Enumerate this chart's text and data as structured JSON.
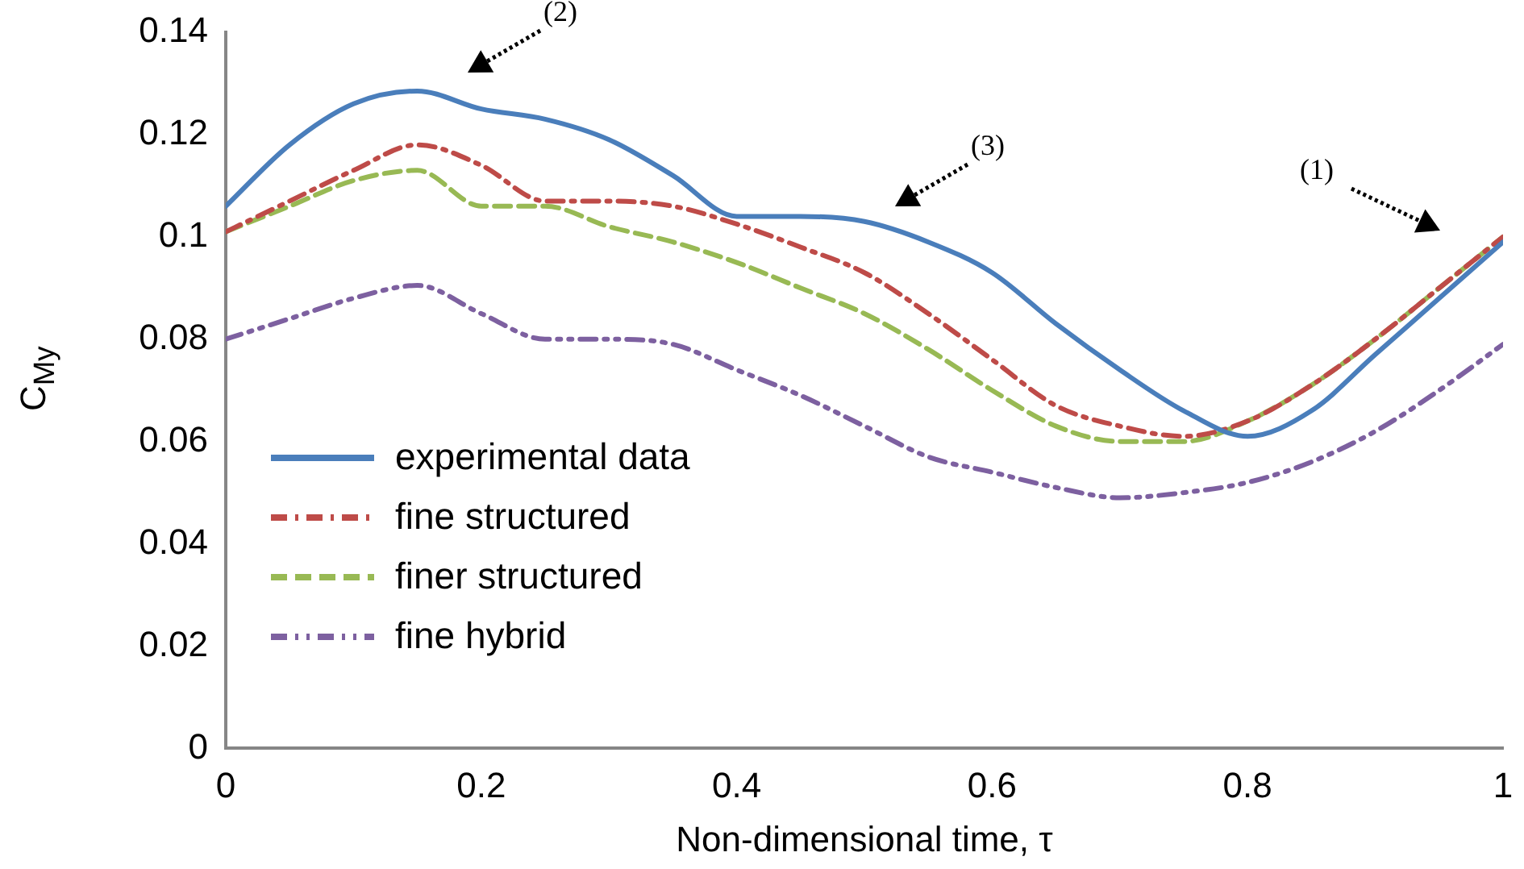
{
  "chart_data": {
    "type": "line",
    "xlabel": "Non-dimensional time, τ",
    "ylabel": "C$_{My}$",
    "x": [
      0,
      0.05,
      0.1,
      0.15,
      0.2,
      0.25,
      0.3,
      0.35,
      0.4,
      0.45,
      0.5,
      0.55,
      0.6,
      0.65,
      0.7,
      0.75,
      0.8,
      0.85,
      0.9,
      0.95,
      1
    ],
    "series": [
      {
        "name": "experimental data",
        "color": "#4a7ebb",
        "line_style": "solid",
        "values": [
          0.106,
          0.118,
          0.126,
          0.1285,
          0.125,
          0.123,
          0.119,
          0.112,
          0.104,
          0.104,
          0.103,
          0.099,
          0.093,
          0.083,
          0.074,
          0.066,
          0.061,
          0.066,
          0.077,
          0.088,
          0.099
        ]
      },
      {
        "name": "fine structured",
        "color": "#be4b48",
        "line_style": "dashdot",
        "values": [
          0.101,
          0.107,
          0.113,
          0.118,
          0.114,
          0.107,
          0.107,
          0.106,
          0.1025,
          0.098,
          0.093,
          0.085,
          0.076,
          0.067,
          0.063,
          0.061,
          0.064,
          0.071,
          0.08,
          0.09,
          0.1
        ]
      },
      {
        "name": "finer structured",
        "color": "#98b954",
        "line_style": "dashed",
        "values": [
          0.101,
          0.106,
          0.111,
          0.113,
          0.106,
          0.106,
          0.102,
          0.099,
          0.095,
          0.09,
          0.085,
          0.078,
          0.07,
          0.063,
          0.06,
          0.06,
          0.064,
          0.071,
          0.08,
          0.09,
          0.1
        ]
      },
      {
        "name": "fine hybrid",
        "color": "#7d60a0",
        "line_style": "dashdotdot",
        "values": [
          0.08,
          0.084,
          0.088,
          0.0905,
          0.085,
          0.08,
          0.08,
          0.079,
          0.074,
          0.069,
          0.063,
          0.057,
          0.054,
          0.051,
          0.049,
          0.05,
          0.052,
          0.056,
          0.062,
          0.07,
          0.079
        ]
      }
    ],
    "xlim": [
      0,
      1
    ],
    "xticks": [
      0,
      0.2,
      0.4,
      0.6,
      0.8,
      1
    ],
    "ylim": [
      0,
      0.14
    ],
    "yticks": [
      0,
      0.02,
      0.04,
      0.06,
      0.08,
      0.1,
      0.12,
      0.14
    ],
    "grid": false,
    "legend": "bottom left",
    "marker": "none",
    "annotations": [
      "(1)",
      "(2)",
      "(3)"
    ]
  }
}
